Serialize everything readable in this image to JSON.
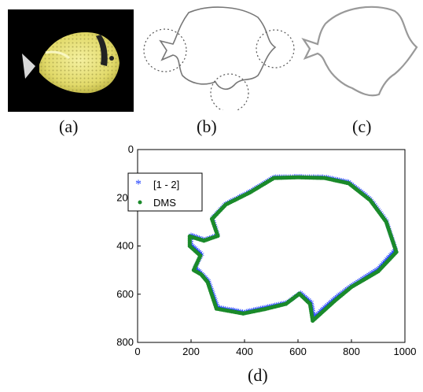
{
  "captions": {
    "a": "(a)",
    "b": "(b)",
    "c": "(c)",
    "d": "(d)"
  },
  "chart_data": {
    "type": "scatter",
    "xlim": [
      0,
      1000
    ],
    "ylim": [
      0,
      800
    ],
    "y_axis_inverted": true,
    "xticks": [
      "0",
      "200",
      "400",
      "600",
      "800",
      "1000"
    ],
    "yticks": [
      "0",
      "200",
      "400",
      "600",
      "800"
    ],
    "legend_position": "top-left",
    "colors": {
      "series1": "#1a3cff",
      "series2": "#1a8a2a"
    },
    "series": [
      {
        "name": "[1 - 2]",
        "marker": "asterisk",
        "points": [
          [
            510,
            120
          ],
          [
            600,
            118
          ],
          [
            700,
            120
          ],
          [
            790,
            140
          ],
          [
            870,
            210
          ],
          [
            930,
            300
          ],
          [
            965,
            420
          ],
          [
            900,
            500
          ],
          [
            800,
            570
          ],
          [
            740,
            620
          ],
          [
            700,
            660
          ],
          [
            660,
            700
          ],
          [
            650,
            640
          ],
          [
            610,
            600
          ],
          [
            560,
            640
          ],
          [
            480,
            660
          ],
          [
            400,
            680
          ],
          [
            300,
            660
          ],
          [
            265,
            550
          ],
          [
            240,
            520
          ],
          [
            215,
            495
          ],
          [
            240,
            440
          ],
          [
            200,
            400
          ],
          [
            200,
            360
          ],
          [
            250,
            380
          ],
          [
            300,
            360
          ],
          [
            280,
            290
          ],
          [
            330,
            230
          ],
          [
            420,
            180
          ]
        ]
      },
      {
        "name": "DMS",
        "marker": "dot",
        "points": [
          [
            510,
            118
          ],
          [
            600,
            115
          ],
          [
            700,
            118
          ],
          [
            790,
            140
          ],
          [
            870,
            210
          ],
          [
            930,
            300
          ],
          [
            968,
            425
          ],
          [
            900,
            505
          ],
          [
            800,
            570
          ],
          [
            740,
            625
          ],
          [
            700,
            665
          ],
          [
            655,
            710
          ],
          [
            645,
            640
          ],
          [
            605,
            598
          ],
          [
            555,
            640
          ],
          [
            475,
            662
          ],
          [
            395,
            680
          ],
          [
            295,
            660
          ],
          [
            262,
            550
          ],
          [
            238,
            518
          ],
          [
            210,
            500
          ],
          [
            235,
            440
          ],
          [
            195,
            400
          ],
          [
            195,
            360
          ],
          [
            248,
            378
          ],
          [
            300,
            358
          ],
          [
            278,
            288
          ],
          [
            330,
            228
          ],
          [
            420,
            178
          ]
        ]
      }
    ]
  }
}
